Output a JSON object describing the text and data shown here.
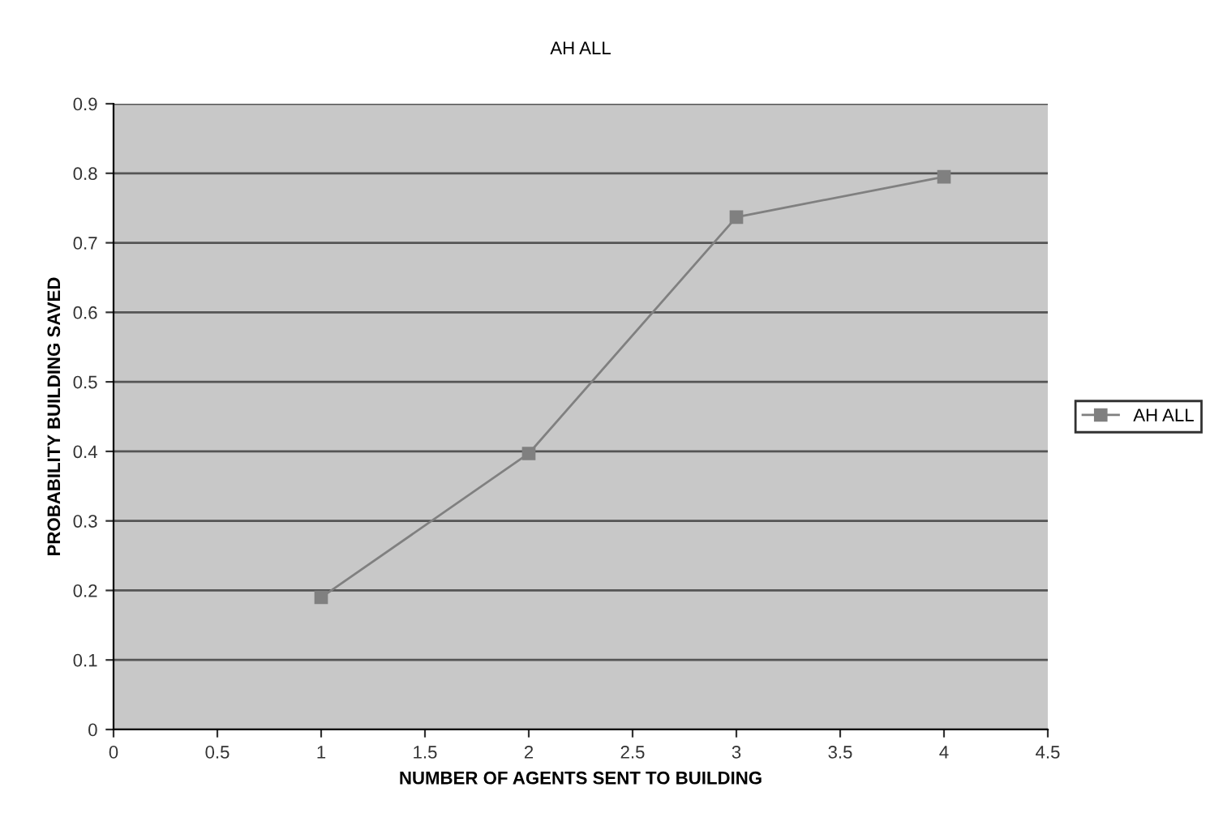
{
  "chart_data": {
    "type": "line",
    "title": "AH ALL",
    "xlabel": "NUMBER OF AGENTS SENT TO BUILDING",
    "ylabel": "PROBABILITY BUILDING SAVED",
    "x": [
      1,
      2,
      3,
      4
    ],
    "series": [
      {
        "name": "AH ALL",
        "color": "#808080",
        "values": [
          0.19,
          0.397,
          0.737,
          0.795
        ]
      }
    ],
    "xlim": [
      0,
      4.5
    ],
    "xticks": [
      0,
      0.5,
      1,
      1.5,
      2,
      2.5,
      3,
      3.5,
      4,
      4.5
    ],
    "ylim": [
      0,
      0.9
    ],
    "yticks": [
      0,
      0.1,
      0.2,
      0.3,
      0.4,
      0.5,
      0.6,
      0.7,
      0.8,
      0.9
    ],
    "grid": "y",
    "legend": "right",
    "marker": "square",
    "line_style": "solid"
  }
}
